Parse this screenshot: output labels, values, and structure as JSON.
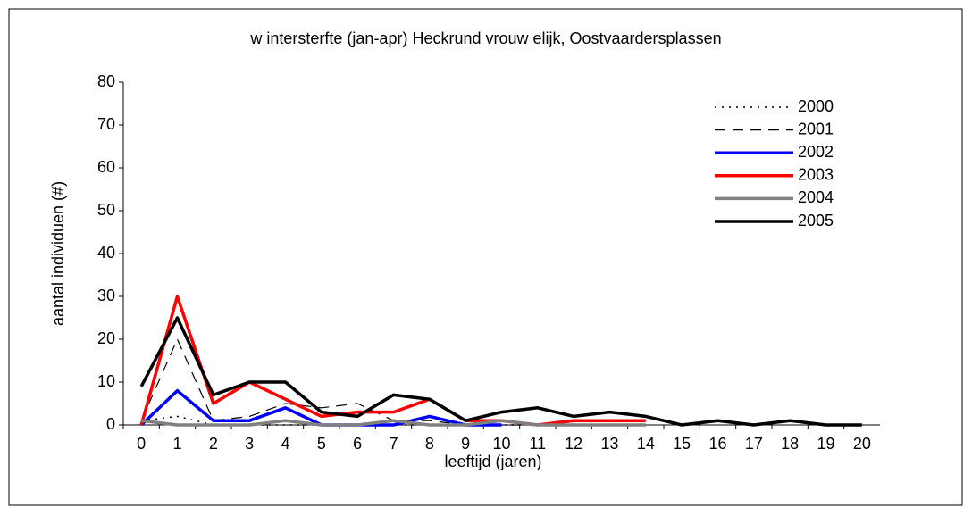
{
  "chart_data": {
    "type": "line",
    "title": "w intersterfte (jan-apr) Heckrund vrouw elijk, Oostvaardersplassen",
    "xlabel": "leeftijd (jaren)",
    "ylabel": "aantal individuen (#)",
    "categories": [
      "0",
      "1",
      "2",
      "3",
      "4",
      "5",
      "6",
      "7",
      "8",
      "9",
      "10",
      "11",
      "12",
      "13",
      "14",
      "15",
      "16",
      "17",
      "18",
      "19",
      "20"
    ],
    "ylim": [
      0,
      80
    ],
    "yticks": [
      0,
      10,
      20,
      30,
      40,
      50,
      60,
      70,
      80
    ],
    "series": [
      {
        "name": "2000",
        "color": "#000000",
        "dash": "dotted",
        "values": [
          1,
          2,
          0,
          0,
          0,
          0,
          0,
          0,
          0,
          0,
          0,
          0,
          0,
          0,
          0,
          null,
          null,
          null,
          null,
          null,
          null
        ]
      },
      {
        "name": "2001",
        "color": "#000000",
        "dash": "dashed",
        "values": [
          1,
          20,
          1,
          2,
          5,
          4,
          5,
          1,
          1,
          0,
          0,
          0,
          0,
          0,
          0,
          null,
          null,
          null,
          null,
          null,
          null
        ]
      },
      {
        "name": "2002",
        "color": "#0000ff",
        "dash": "solid",
        "values": [
          0,
          8,
          1,
          1,
          4,
          0,
          0,
          0,
          2,
          0,
          0,
          null,
          null,
          null,
          null,
          null,
          null,
          null,
          null,
          null,
          null
        ]
      },
      {
        "name": "2003",
        "color": "#ff0000",
        "dash": "solid",
        "values": [
          0,
          30,
          5,
          10,
          6,
          2,
          3,
          3,
          6,
          1,
          1,
          0,
          1,
          1,
          1,
          null,
          null,
          null,
          null,
          null,
          null
        ]
      },
      {
        "name": "2004",
        "color": "#808080",
        "dash": "solid",
        "values": [
          1,
          0,
          0,
          0,
          1,
          0,
          0,
          1,
          0,
          0,
          1,
          0,
          0,
          0,
          0,
          null,
          null,
          null,
          null,
          null,
          null
        ]
      },
      {
        "name": "2005",
        "color": "#000000",
        "dash": "solid",
        "values": [
          9,
          25,
          7,
          10,
          10,
          3,
          2,
          7,
          6,
          1,
          3,
          4,
          2,
          3,
          2,
          0,
          1,
          0,
          1,
          0,
          0
        ]
      }
    ]
  }
}
